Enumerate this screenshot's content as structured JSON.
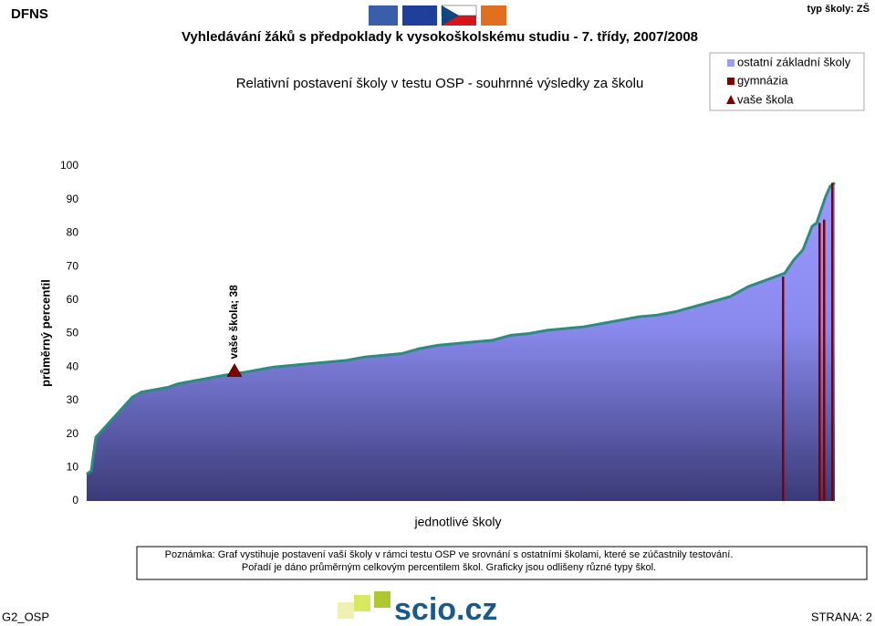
{
  "header": {
    "brand": "DFNS",
    "title": "Vyhledávání žáků s předpoklady k vysokoškolskému studiu - 7. třídy, 2007/2008",
    "school_type": "typ školy: ZŠ"
  },
  "chart_data": {
    "type": "area",
    "title": "Relativní postavení školy v testu OSP - souhrnné výsledky za školu",
    "y_label": "průměrný percentil",
    "x_label": "jednotlivé školy",
    "xlim": [
      0,
      823
    ],
    "ylim": [
      0,
      100
    ],
    "yticks": [
      0,
      10,
      20,
      30,
      40,
      50,
      60,
      70,
      80,
      90,
      100
    ],
    "legend": "top-right",
    "series": [
      {
        "name": "ostatní základní školy",
        "color": "#9a9aff",
        "line_color": "#2e8b7e",
        "x": [
          0,
          5,
          10,
          20,
          30,
          40,
          50,
          60,
          70,
          80,
          90,
          100,
          110,
          120,
          130,
          140,
          150,
          162,
          175,
          185,
          195,
          205,
          225,
          245,
          265,
          285,
          305,
          325,
          345,
          365,
          385,
          405,
          425,
          445,
          465,
          485,
          505,
          525,
          545,
          565,
          585,
          605,
          625,
          645,
          665,
          685,
          705,
          725,
          745,
          755,
          765,
          775,
          785,
          795,
          800,
          810,
          815,
          820
        ],
        "values": [
          8,
          9,
          19,
          22,
          25,
          28,
          31,
          32.5,
          33,
          33.5,
          34,
          35,
          35.5,
          36,
          36.5,
          37,
          37.5,
          38,
          38.5,
          39,
          39.5,
          40,
          40.5,
          41,
          41.5,
          42,
          43,
          43.5,
          44,
          45.5,
          46.5,
          47,
          47.5,
          48,
          49.5,
          50,
          51,
          51.5,
          52,
          53,
          54,
          55,
          55.5,
          56.5,
          58,
          59.5,
          61,
          64,
          66,
          67,
          68,
          72,
          75,
          82,
          83,
          91,
          94,
          95
        ]
      },
      {
        "name": "gymnázia",
        "color": "#800000",
        "x": [
          763,
          803,
          808,
          817
        ],
        "values": [
          67,
          83,
          84,
          95
        ]
      },
      {
        "name": "vaše škola",
        "color": "#800000",
        "x": [
          162
        ],
        "values": [
          38
        ],
        "value_labels": [
          "vaše škola; 38"
        ]
      }
    ]
  },
  "note": [
    "Poznámka: Graf vystihuje postavení vaší školy v rámci testu OSP ve srovnání s ostatními školami, které se zúčastnily testování.",
    "Pořadí je dáno průměrným celkovým percentilem škol. Graficky jsou odlišeny různé typy škol."
  ],
  "footer": {
    "code": "G2_OSP",
    "logo": "scio.cz",
    "page": "STRANA: 2"
  }
}
